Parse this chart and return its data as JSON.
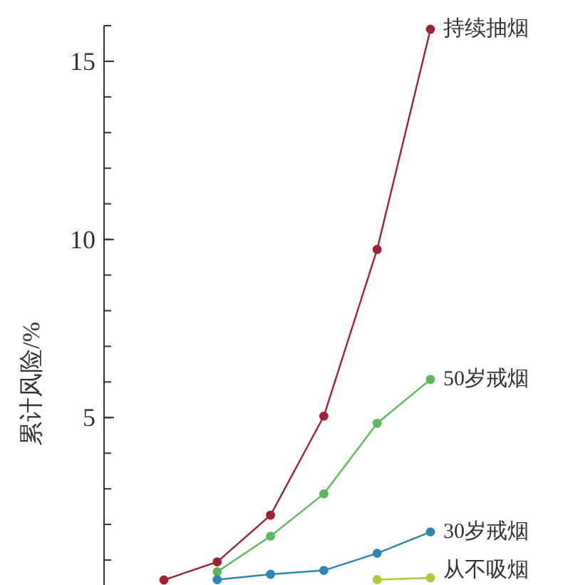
{
  "chart_data": {
    "type": "line",
    "ylabel": "累计风险/%",
    "categories": [
      null,
      null,
      null,
      null,
      null,
      null
    ],
    "ylim": [
      0.3,
      16
    ],
    "yticks": [
      5,
      10,
      15
    ],
    "marker": "circle",
    "grid": false,
    "tick_labels": "y",
    "series": [
      {
        "name": "持续抽烟",
        "color": "#9b2335",
        "values": [
          0.44,
          0.95,
          2.26,
          5.04,
          9.72,
          15.9
        ]
      },
      {
        "name": "50岁戒烟",
        "color": "#5cb85c",
        "values": [
          null,
          0.67,
          1.67,
          2.86,
          4.84,
          6.07
        ]
      },
      {
        "name": "30岁戒烟",
        "color": "#2f86b5",
        "values": [
          null,
          0.45,
          0.6,
          0.71,
          1.19,
          1.79
        ]
      },
      {
        "name": "从不吸烟",
        "color": "#b5c63a",
        "values": [
          null,
          null,
          null,
          null,
          0.45,
          0.5
        ]
      }
    ]
  }
}
